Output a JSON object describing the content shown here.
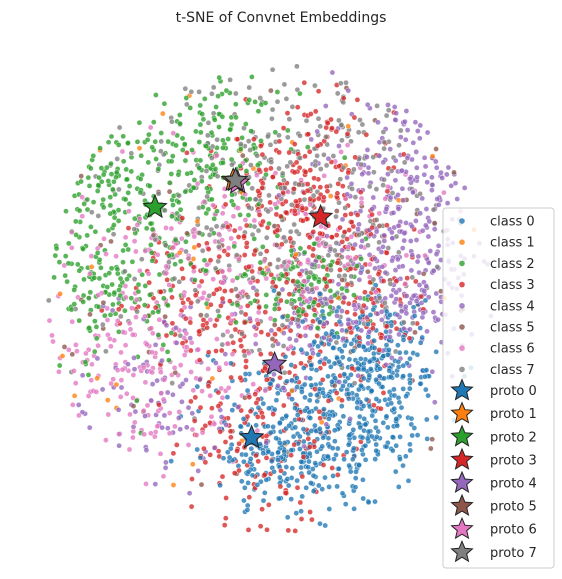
{
  "chart_data": {
    "type": "scatter",
    "title": "t-SNE of Convnet Embeddings",
    "xlabel": "",
    "ylabel": "",
    "axes_visible": false,
    "grid": false,
    "legend_position": "lower-right",
    "xlim": [
      -100,
      100
    ],
    "ylim": [
      -100,
      100
    ],
    "series": [
      {
        "name": "class 0",
        "kind": "points",
        "color": "#1f77b4",
        "regions": [
          [
            35,
            -40,
            24,
            20,
            0.35
          ],
          [
            25,
            -58,
            20,
            18,
            0.35
          ],
          [
            48,
            -25,
            14,
            14,
            0.2
          ],
          [
            0,
            -62,
            12,
            12,
            0.15
          ]
        ]
      },
      {
        "name": "class 1",
        "kind": "points",
        "color": "#ff7f0e",
        "regions": [
          [
            10,
            0,
            70,
            70,
            0.07
          ]
        ]
      },
      {
        "name": "class 2",
        "kind": "points",
        "color": "#2ca02c",
        "regions": [
          [
            -55,
            40,
            26,
            22,
            0.3
          ],
          [
            -70,
            10,
            20,
            25,
            0.2
          ],
          [
            -20,
            60,
            20,
            16,
            0.2
          ],
          [
            15,
            5,
            15,
            10,
            0.15
          ]
        ]
      },
      {
        "name": "class 3",
        "kind": "points",
        "color": "#d62728",
        "regions": [
          [
            15,
            48,
            22,
            20,
            0.3
          ],
          [
            0,
            -50,
            22,
            30,
            0.3
          ],
          [
            -25,
            0,
            20,
            18,
            0.2
          ],
          [
            40,
            0,
            18,
            20,
            0.2
          ]
        ]
      },
      {
        "name": "class 4",
        "kind": "points",
        "color": "#9467bd",
        "regions": [
          [
            60,
            40,
            20,
            28,
            0.35
          ],
          [
            55,
            0,
            20,
            18,
            0.2
          ],
          [
            -45,
            -40,
            28,
            20,
            0.15
          ],
          [
            20,
            -10,
            15,
            15,
            0.1
          ]
        ]
      },
      {
        "name": "class 5",
        "kind": "points",
        "color": "#8c564b",
        "regions": [
          [
            10,
            0,
            70,
            70,
            0.1
          ]
        ]
      },
      {
        "name": "class 6",
        "kind": "points",
        "color": "#e377c2",
        "regions": [
          [
            -55,
            -30,
            30,
            22,
            0.3
          ],
          [
            -35,
            20,
            30,
            20,
            0.2
          ],
          [
            20,
            25,
            25,
            22,
            0.15
          ]
        ]
      },
      {
        "name": "class 7",
        "kind": "points",
        "color": "#7f7f7f",
        "regions": [
          [
            -20,
            35,
            35,
            35,
            0.3
          ],
          [
            20,
            55,
            30,
            20,
            0.2
          ],
          [
            30,
            10,
            25,
            20,
            0.15
          ]
        ]
      },
      {
        "name": "proto 0",
        "kind": "prototype",
        "color": "#1f77b4",
        "x": -8,
        "y": -57
      },
      {
        "name": "proto 1",
        "kind": "prototype",
        "color": "#ff7f0e",
        "x": -16,
        "y": 48
      },
      {
        "name": "proto 2",
        "kind": "prototype",
        "color": "#2ca02c",
        "x": -50,
        "y": 37
      },
      {
        "name": "proto 3",
        "kind": "prototype",
        "color": "#d62728",
        "x": 22,
        "y": 33
      },
      {
        "name": "proto 4",
        "kind": "prototype",
        "color": "#9467bd",
        "x": 2,
        "y": -27
      },
      {
        "name": "proto 5",
        "kind": "prototype",
        "color": "#8c564b",
        "x": -15,
        "y": 48
      },
      {
        "name": "proto 6",
        "kind": "prototype",
        "color": "#e377c2",
        "x": -14,
        "y": 47
      },
      {
        "name": "proto 7",
        "kind": "prototype",
        "color": "#7f7f7f",
        "x": -15,
        "y": 48
      }
    ]
  }
}
